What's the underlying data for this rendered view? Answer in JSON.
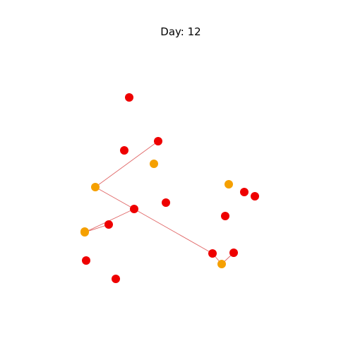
{
  "title": "Day: 12",
  "colors": {
    "infected": "#ee0000",
    "exposed": "#f5a000",
    "edge": "#e06666"
  },
  "nodes": [
    {
      "id": "n1",
      "state": "infected"
    },
    {
      "id": "n2",
      "state": "infected"
    },
    {
      "id": "n3",
      "state": "infected"
    },
    {
      "id": "n4",
      "state": "exposed"
    },
    {
      "id": "n5",
      "state": "exposed"
    },
    {
      "id": "n6",
      "state": "infected"
    },
    {
      "id": "n7",
      "state": "infected"
    },
    {
      "id": "n8",
      "state": "exposed"
    },
    {
      "id": "n9",
      "state": "infected"
    },
    {
      "id": "n10",
      "state": "exposed"
    },
    {
      "id": "n11",
      "state": "infected"
    },
    {
      "id": "n12",
      "state": "infected"
    },
    {
      "id": "n13",
      "state": "exposed"
    },
    {
      "id": "n14",
      "state": "infected"
    },
    {
      "id": "n15",
      "state": "exposed"
    },
    {
      "id": "n16",
      "state": "infected"
    },
    {
      "id": "n17",
      "state": "infected"
    },
    {
      "id": "n18",
      "state": "infected"
    },
    {
      "id": "n19",
      "state": "infected"
    }
  ],
  "edges": [
    [
      "n3",
      "n5"
    ],
    [
      "n5",
      "n7"
    ],
    [
      "n7",
      "n12"
    ],
    [
      "n7",
      "n10"
    ],
    [
      "n9",
      "n10"
    ],
    [
      "n12",
      "n13"
    ],
    [
      "n13",
      "n11"
    ]
  ]
}
